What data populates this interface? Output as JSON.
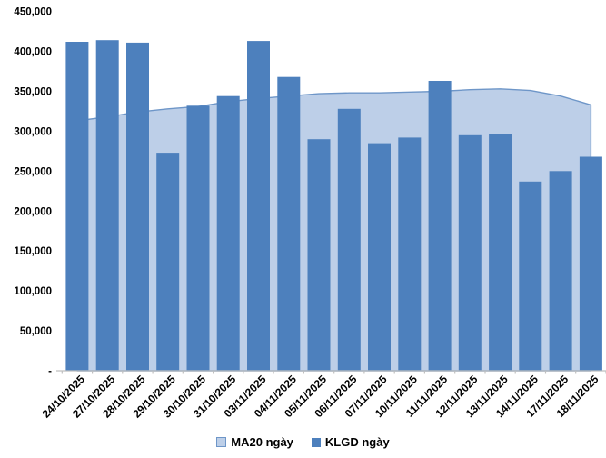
{
  "chart_data": {
    "type": "combo",
    "title": "",
    "xlabel": "",
    "ylabel": "",
    "ylim": [
      0,
      450000
    ],
    "grid": false,
    "legend_position": "bottom-center",
    "categories": [
      "24/10/2025",
      "27/10/2025",
      "28/10/2025",
      "29/10/2025",
      "30/10/2025",
      "31/10/2025",
      "03/11/2025",
      "04/11/2025",
      "05/11/2025",
      "06/11/2025",
      "07/11/2025",
      "10/11/2025",
      "11/11/2025",
      "12/11/2025",
      "13/11/2025",
      "14/11/2025",
      "17/11/2025",
      "18/11/2025"
    ],
    "series": [
      {
        "name": "MA20 ngày",
        "type": "area",
        "fill": "#BDCFE8",
        "line": "#6E96C8",
        "values": [
          313000,
          318000,
          324000,
          328000,
          331000,
          337000,
          341000,
          344000,
          347000,
          348000,
          348000,
          349000,
          350000,
          352000,
          353000,
          351000,
          344000,
          333000
        ]
      },
      {
        "name": "KLGD ngày",
        "type": "bar",
        "fill": "#4D80BD",
        "values": [
          412000,
          414000,
          411000,
          273000,
          332000,
          344000,
          413000,
          368000,
          290000,
          328000,
          285000,
          292000,
          363000,
          295000,
          297000,
          237000,
          250000,
          268000
        ]
      }
    ],
    "yticks": [
      {
        "value": 450000,
        "label": "450,000"
      },
      {
        "value": 400000,
        "label": "400,000"
      },
      {
        "value": 350000,
        "label": "350,000"
      },
      {
        "value": 300000,
        "label": "300,000"
      },
      {
        "value": 250000,
        "label": "250,000"
      },
      {
        "value": 200000,
        "label": "200,000"
      },
      {
        "value": 150000,
        "label": "150,000"
      },
      {
        "value": 100000,
        "label": "100,000"
      },
      {
        "value": 50000,
        "label": "50,000"
      },
      {
        "value": 0,
        "label": "-"
      }
    ],
    "colors": {
      "axis": "#BFBFBF",
      "text": "#000000"
    }
  }
}
